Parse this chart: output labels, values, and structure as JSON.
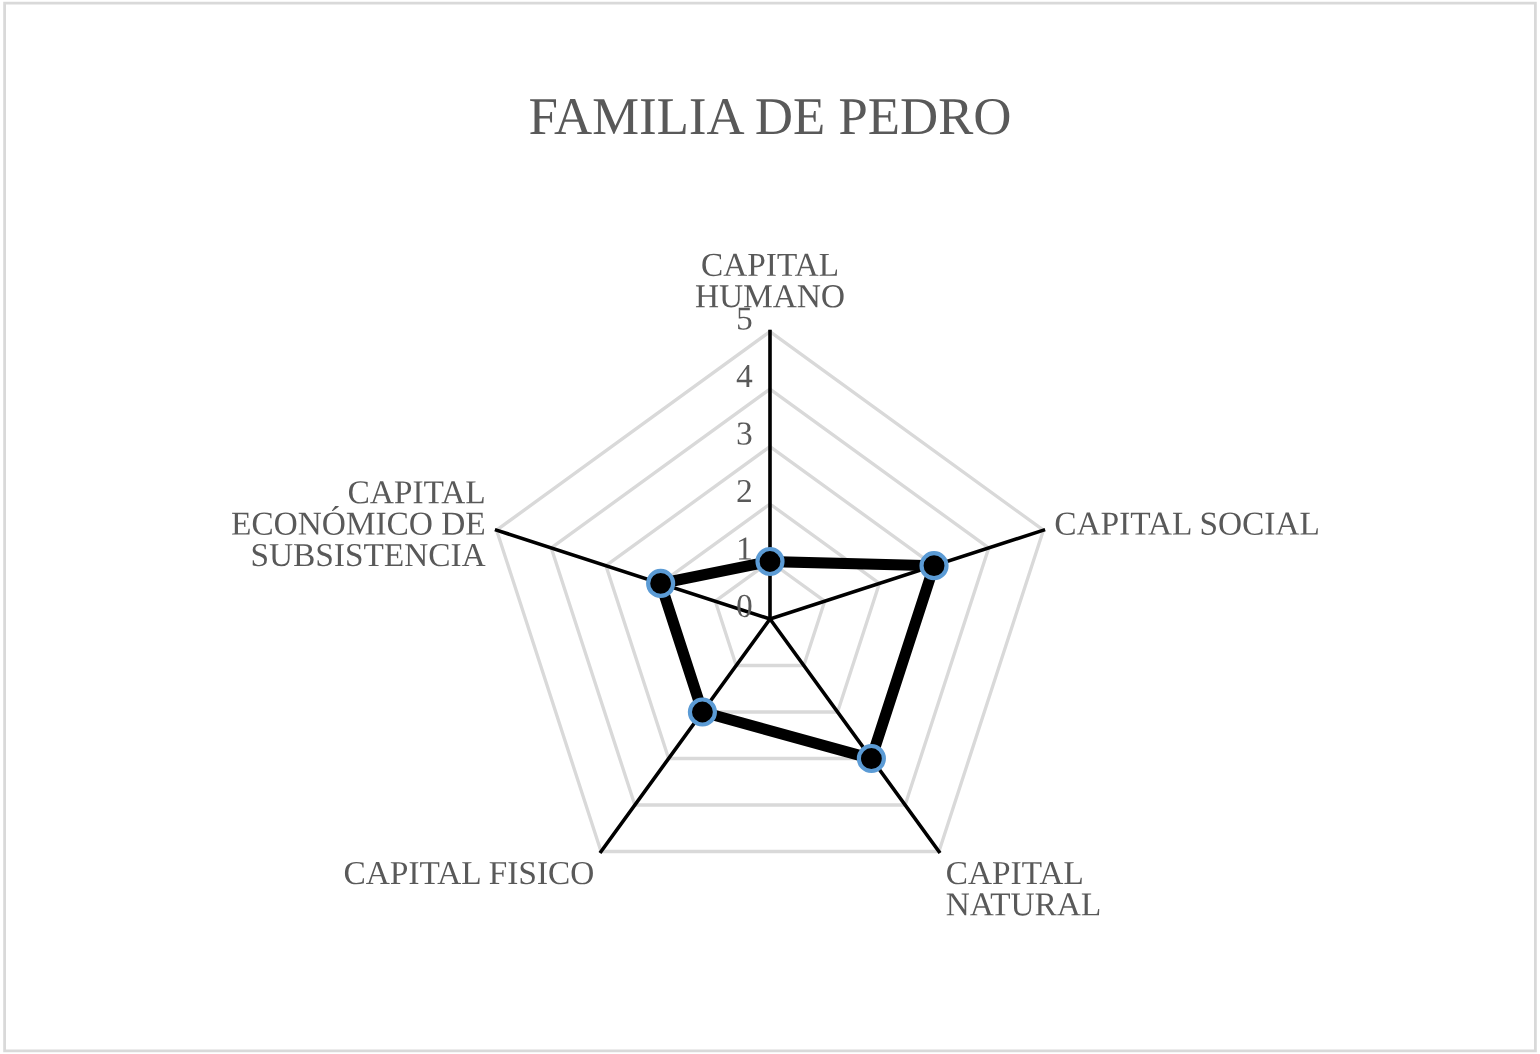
{
  "chart_data": {
    "type": "radar",
    "title": "FAMILIA DE PEDRO",
    "categories": [
      "CAPITAL\nHUMANO",
      "CAPITAL SOCIAL",
      "CAPITAL\nNATURAL",
      "CAPITAL FISICO",
      "CAPITAL\nECONÓMICO DE\nSUBSISTENCIA"
    ],
    "series": [
      {
        "color": "#000000",
        "values": [
          1,
          3,
          3,
          2,
          2
        ]
      }
    ],
    "ylim": [
      0,
      5
    ],
    "yticks": [
      0,
      1,
      2,
      3,
      4,
      5
    ],
    "grid": true,
    "marker": "circle",
    "line_style": "solid"
  }
}
